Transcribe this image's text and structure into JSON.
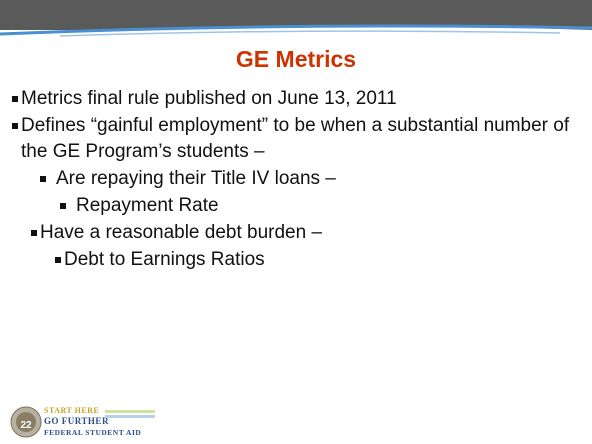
{
  "slide": {
    "title": "GE Metrics",
    "bullets": [
      {
        "level": 0,
        "text": "Metrics final rule published on June 13, 2011"
      },
      {
        "level": 0,
        "text": "Defines “gainful employment” to be when a substantial number of the GE Program’s students –"
      },
      {
        "level": 1,
        "text": "Are repaying their Title IV loans –"
      },
      {
        "level": 2,
        "text": "Repayment Rate"
      },
      {
        "level": 1,
        "text": "Have a reasonable debt burden –"
      },
      {
        "level": 2,
        "text": "Debt to Earnings Ratios"
      }
    ],
    "footer": {
      "line1": "START HERE",
      "line2": "GO FURTHER",
      "line3": "FEDERAL STUDENT AID",
      "page_number": "22"
    }
  }
}
